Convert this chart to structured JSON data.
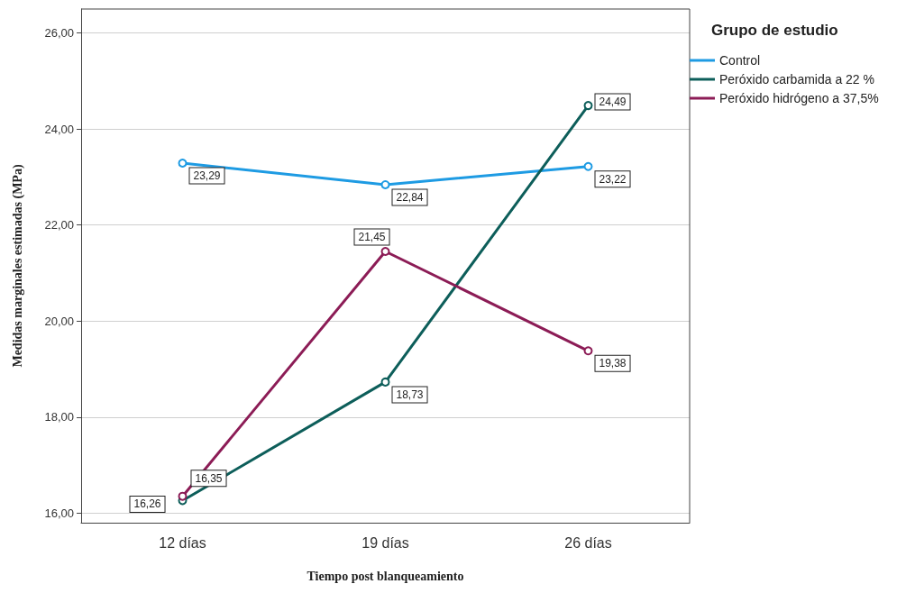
{
  "chart_data": {
    "type": "line",
    "xlabel": "Tiempo post blanqueamiento",
    "ylabel": "Medidas marginales estimadas (MPa)",
    "legend_title": "Grupo de estudio",
    "categories": [
      "12 días",
      "19 días",
      "26 días"
    ],
    "series": [
      {
        "name": "Control",
        "color": "#1e9be3",
        "values": [
          23.29,
          22.84,
          23.22
        ],
        "value_labels": [
          "23,29",
          "22,84",
          "23,22"
        ]
      },
      {
        "name": "Peróxido carbamida a 22 %",
        "color": "#0d5e5a",
        "values": [
          16.26,
          18.73,
          24.49
        ],
        "value_labels": [
          "16,26",
          "18,73",
          "24,49"
        ]
      },
      {
        "name": "Peróxido hidrógeno a 37,5%",
        "color": "#8c1c56",
        "values": [
          16.35,
          21.45,
          19.38
        ],
        "value_labels": [
          "16,35",
          "21,45",
          "19,38"
        ]
      }
    ],
    "ylim": [
      15.8,
      26.5
    ],
    "yticks": [
      {
        "value": 16,
        "label": "16,00"
      },
      {
        "value": 18,
        "label": "18,00"
      },
      {
        "value": 20,
        "label": "20,00"
      },
      {
        "value": 22,
        "label": "22,00"
      },
      {
        "value": 24,
        "label": "24,00"
      },
      {
        "value": 26,
        "label": "26,00"
      }
    ],
    "grid": "y",
    "legend": "top right",
    "marker": "circle",
    "line_style": "solid"
  }
}
